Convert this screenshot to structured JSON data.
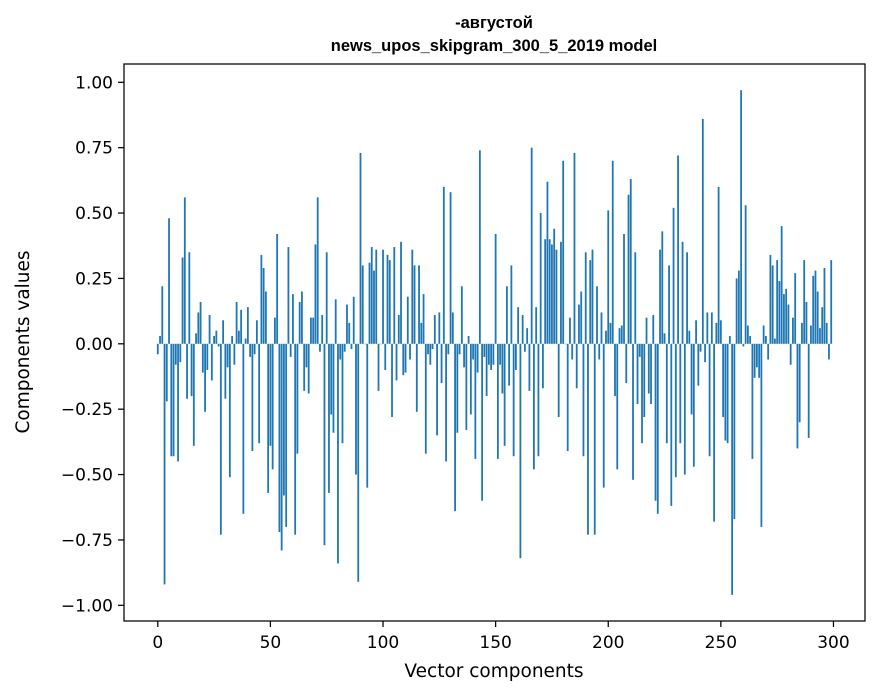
{
  "chart_data": {
    "type": "bar",
    "title": "-августой",
    "subtitle": "news_upos_skipgram_300_5_2019 model",
    "xlabel": "Vector components",
    "ylabel": "Components values",
    "xlim": [
      -15,
      314
    ],
    "ylim": [
      -1.06,
      1.07
    ],
    "xticks": [
      0,
      50,
      100,
      150,
      200,
      250,
      300
    ],
    "xtick_labels": [
      "0",
      "50",
      "100",
      "150",
      "200",
      "250",
      "300"
    ],
    "yticks": [
      -1.0,
      -0.75,
      -0.5,
      -0.25,
      0.0,
      0.25,
      0.5,
      0.75,
      1.0
    ],
    "ytick_labels": [
      "−1.00",
      "−0.75",
      "−0.50",
      "−0.25",
      "0.00",
      "0.25",
      "0.50",
      "0.75",
      "1.00"
    ],
    "grid": false,
    "bar_color": "#1f77b4",
    "values": [
      -0.04,
      0.03,
      0.22,
      -0.92,
      -0.22,
      0.48,
      -0.43,
      -0.43,
      -0.08,
      -0.45,
      -0.07,
      0.33,
      0.56,
      -0.21,
      0.35,
      -0.2,
      -0.39,
      0.04,
      0.12,
      0.16,
      -0.11,
      -0.26,
      -0.1,
      0.11,
      -0.14,
      0.03,
      0.05,
      -0.01,
      -0.73,
      0.09,
      -0.21,
      -0.09,
      -0.51,
      0.03,
      -0.08,
      0.16,
      0.05,
      0.13,
      -0.65,
      0.02,
      0.14,
      -0.05,
      -0.41,
      -0.04,
      0.09,
      -0.38,
      0.34,
      0.29,
      0.2,
      -0.57,
      -0.39,
      -0.48,
      0.1,
      0.42,
      -0.72,
      -0.79,
      -0.58,
      -0.7,
      0.37,
      -0.05,
      0.19,
      -0.73,
      -0.42,
      0.16,
      0.2,
      -0.18,
      -0.09,
      -0.19,
      0.1,
      0.1,
      0.38,
      0.56,
      -0.03,
      0.11,
      -0.77,
      0.35,
      -0.57,
      -0.27,
      -0.34,
      0.17,
      -0.84,
      -0.06,
      -0.38,
      -0.03,
      0.15,
      0.08,
      -0.02,
      0.18,
      -0.5,
      -0.91,
      0.73,
      0.3,
      0.0,
      -0.55,
      0.31,
      0.37,
      0.28,
      0.36,
      -0.18,
      0.0,
      0.36,
      -0.1,
      0.34,
      0.32,
      -0.28,
      0.37,
      -0.14,
      0.11,
      0.39,
      -0.12,
      -0.11,
      0.18,
      -0.06,
      0.36,
      0.3,
      -0.26,
      0.3,
      0.08,
      0.19,
      -0.42,
      -0.04,
      -0.08,
      -0.02,
      0.11,
      -0.35,
      0.12,
      -0.15,
      0.6,
      -0.45,
      -0.04,
      0.58,
      0.12,
      -0.64,
      -0.34,
      -0.04,
      0.22,
      -0.09,
      -0.33,
      0.03,
      -0.27,
      -0.06,
      -0.44,
      -0.11,
      0.74,
      -0.6,
      -0.05,
      -0.2,
      -0.08,
      -0.1,
      -0.08,
      0.42,
      -0.44,
      -0.08,
      -0.19,
      -0.39,
      0.22,
      -0.16,
      0.3,
      -0.43,
      -0.1,
      0.14,
      -0.82,
      0.11,
      -0.03,
      0.06,
      -0.18,
      0.75,
      -0.48,
      0.14,
      -0.43,
      0.5,
      -0.17,
      0.4,
      0.62,
      0.4,
      0.38,
      0.44,
      0.36,
      -0.28,
      0.39,
      0.7,
      0.0,
      -0.41,
      0.1,
      -0.06,
      0.73,
      -0.17,
      0.15,
      0.2,
      -0.43,
      0.35,
      -0.73,
      0.32,
      0.36,
      -0.73,
      0.22,
      -0.06,
      0.12,
      -0.55,
      0.05,
      0.51,
      0.08,
      0.7,
      -0.2,
      -0.48,
      0.06,
      0.07,
      0.42,
      -0.15,
      0.57,
      0.63,
      -0.52,
      0.35,
      -0.23,
      -0.05,
      -0.38,
      -0.28,
      0.1,
      -0.19,
      -0.23,
      0.11,
      -0.6,
      -0.65,
      0.36,
      0.43,
      0.04,
      -0.38,
      0.3,
      -0.62,
      0.52,
      -0.51,
      0.72,
      -0.38,
      0.39,
      -0.5,
      0.35,
      0.05,
      -0.27,
      -0.47,
      0.09,
      -0.16,
      -0.03,
      0.86,
      -0.07,
      0.12,
      -0.43,
      0.12,
      -0.68,
      0.08,
      0.6,
      0.09,
      -0.28,
      -0.37,
      -0.38,
      0.03,
      -0.96,
      -0.67,
      0.25,
      0.28,
      0.97,
      -0.01,
      0.53,
      0.07,
      0.03,
      -0.44,
      -0.13,
      -0.09,
      -0.13,
      -0.7,
      0.07,
      0.03,
      -0.06,
      0.34,
      0.3,
      0.02,
      0.32,
      0.24,
      0.45,
      0.19,
      0.21,
      0.15,
      -0.08,
      0.1,
      0.27,
      -0.4,
      -0.3,
      0.08,
      0.32,
      0.16,
      -0.36,
      0.07,
      0.26,
      0.28,
      0.2,
      0.06,
      0.14,
      0.29,
      0.08,
      -0.06,
      0.32
    ]
  }
}
